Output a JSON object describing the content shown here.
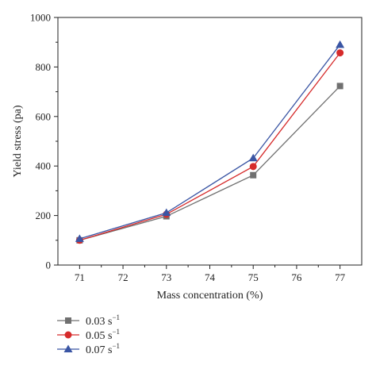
{
  "chart_data": {
    "type": "line",
    "title": "",
    "xlabel": "Mass concentration (%)",
    "ylabel": "Yield stress (pa)",
    "xlim": [
      70.5,
      77.5
    ],
    "ylim": [
      0,
      1000
    ],
    "x_ticks": [
      "71",
      "72",
      "73",
      "74",
      "75",
      "76",
      "77"
    ],
    "y_ticks": [
      "0",
      "200",
      "400",
      "600",
      "800",
      "1000"
    ],
    "grid": false,
    "legend_position": "bottom-left below plot",
    "x": [
      71,
      73,
      75,
      77
    ],
    "series": [
      {
        "name": "0.03 s",
        "name_superscript": "−1",
        "values": [
          100,
          197,
          363,
          723
        ],
        "color": "#707070",
        "marker": "square"
      },
      {
        "name": "0.05 s",
        "name_superscript": "−1",
        "values": [
          100,
          205,
          398,
          857
        ],
        "color": "#d62b2b",
        "marker": "circle"
      },
      {
        "name": "0.07 s",
        "name_superscript": "−1",
        "values": [
          106,
          211,
          432,
          890
        ],
        "color": "#3a55a4",
        "marker": "triangle"
      }
    ]
  }
}
